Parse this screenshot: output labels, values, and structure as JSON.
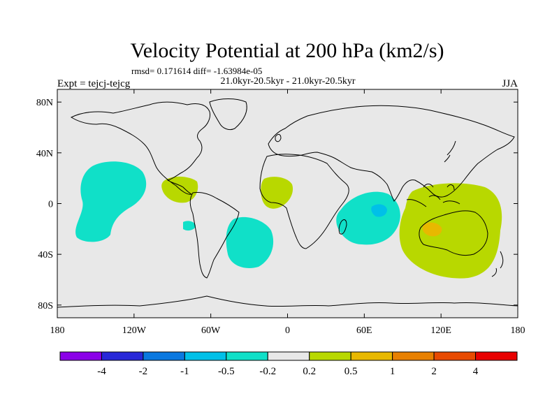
{
  "chart_data": {
    "type": "heatmap",
    "title": "Velocity Potential at 200 hPa (km2/s)",
    "stats_line": "rmsd= 0.171614 diff= -1.63984e-05",
    "period_line": "21.0kyr-20.5kyr - 21.0kyr-20.5kyr",
    "left_label": "Expt = tejcj-tejcg",
    "right_label": "JJA",
    "x_ticks": [
      "180",
      "120W",
      "60W",
      "0",
      "60E",
      "120E",
      "180"
    ],
    "y_ticks": [
      "80N",
      "40N",
      "0",
      "40S",
      "80S"
    ],
    "xlim": [
      -180,
      180
    ],
    "ylim": [
      -90,
      90
    ],
    "colorbar": {
      "labels": [
        "-4",
        "-2",
        "-1",
        "-0.5",
        "-0.2",
        "0.2",
        "0.5",
        "1",
        "2",
        "4"
      ],
      "colors": [
        "#8b00e8",
        "#2828d8",
        "#0a78e0",
        "#00c0e8",
        "#10e0c8",
        "#e8e8e8",
        "#b8d800",
        "#e8b800",
        "#e88000",
        "#e84a00",
        "#e80000"
      ]
    },
    "anomalies": [
      {
        "name": "central-pacific-negative",
        "level": "-0.5 to -0.2",
        "color": "#10e0c8",
        "lon_range": [
          -158,
          -118
        ],
        "lat_range": [
          -28,
          36
        ]
      },
      {
        "name": "caribbean-positive",
        "level": "0.2 to 0.5",
        "color": "#b8d800",
        "lon_range": [
          -90,
          -68
        ],
        "lat_range": [
          3,
          25
        ]
      },
      {
        "name": "south-atlantic-negative",
        "level": "-0.5 to -0.2",
        "color": "#10e0c8",
        "lon_range": [
          -45,
          -18
        ],
        "lat_range": [
          -50,
          -8
        ]
      },
      {
        "name": "west-africa-positive",
        "level": "0.2 to 0.5",
        "color": "#b8d800",
        "lon_range": [
          -18,
          3
        ],
        "lat_range": [
          -2,
          22
        ]
      },
      {
        "name": "indian-ocean-negative",
        "level": "-0.5 to -0.2",
        "color": "#10e0c8",
        "lon_range": [
          35,
          83
        ],
        "lat_range": [
          -32,
          12
        ]
      },
      {
        "name": "indian-ocean-core",
        "level": "-1 to -0.5",
        "color": "#00c0e8",
        "lon_range": [
          65,
          78
        ],
        "lat_range": [
          -10,
          0
        ]
      },
      {
        "name": "maritime-australia-positive",
        "level": "0.2 to 0.5",
        "color": "#b8d800",
        "lon_range": [
          85,
          160
        ],
        "lat_range": [
          -58,
          18
        ]
      },
      {
        "name": "australia-core",
        "level": "0.5 to 1",
        "color": "#e8b800",
        "lon_range": [
          93,
          110
        ],
        "lat_range": [
          -24,
          -14
        ]
      }
    ]
  }
}
